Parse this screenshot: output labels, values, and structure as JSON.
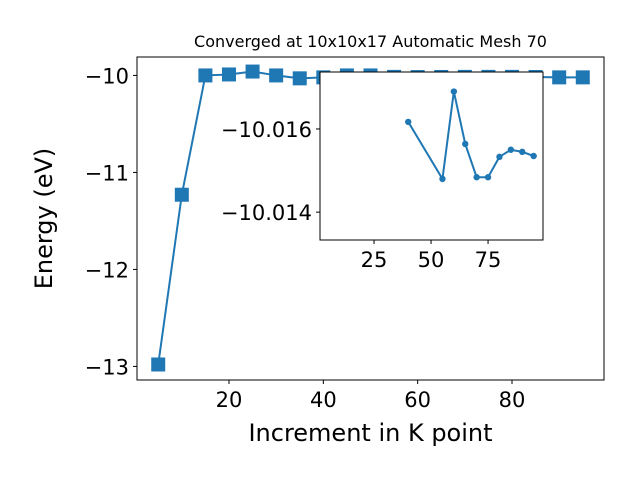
{
  "chart_data": [
    {
      "type": "line",
      "title": "Converged at 10x10x17 Automatic Mesh 70",
      "x_label": "Increment in K point",
      "y_label": "Energy (eV)",
      "x": [
        5,
        10,
        15,
        20,
        25,
        30,
        35,
        40,
        45,
        50,
        55,
        60,
        65,
        70,
        75,
        80,
        85,
        90,
        95
      ],
      "series": [
        {
          "color": "#1f77b4",
          "marker": "square",
          "values": [
            -12.98,
            -11.23,
            -10.0,
            -9.99,
            -9.96,
            -10.0,
            -10.03,
            -10.02,
            -10.0,
            -10.0,
            -10.015,
            -10.017,
            -10.016,
            -10.015,
            -10.015,
            -10.015,
            -10.016,
            -10.02,
            -10.02
          ]
        }
      ],
      "xlim": [
        0.5,
        99.5
      ],
      "ylim": [
        -13.14,
        -9.81
      ],
      "xticks": [
        20,
        40,
        60,
        80
      ],
      "yticks": [
        {
          "value": -13,
          "label": "−13"
        },
        {
          "value": -12,
          "label": "−12"
        },
        {
          "value": -11,
          "label": "−11"
        },
        {
          "value": -10,
          "label": "−10"
        }
      ]
    },
    {
      "type": "line",
      "x": [
        40,
        55,
        60,
        65,
        70,
        75,
        80,
        85,
        90,
        95
      ],
      "series": [
        {
          "color": "#1f77b4",
          "marker": "circle",
          "values": [
            -10.01617,
            -10.0148,
            -10.0169,
            -10.01564,
            -10.01484,
            -10.01484,
            -10.01533,
            -10.0155,
            -10.01545,
            -10.01535
          ]
        }
      ],
      "xlim": [
        1.3,
        99.1
      ],
      "ylim": [
        -10.01333,
        -10.01737
      ],
      "xticks": [
        25,
        50,
        75
      ],
      "yticks": [
        {
          "value": -10.016,
          "label": "−10.016"
        },
        {
          "value": -10.014,
          "label": "−10.014"
        }
      ]
    }
  ]
}
